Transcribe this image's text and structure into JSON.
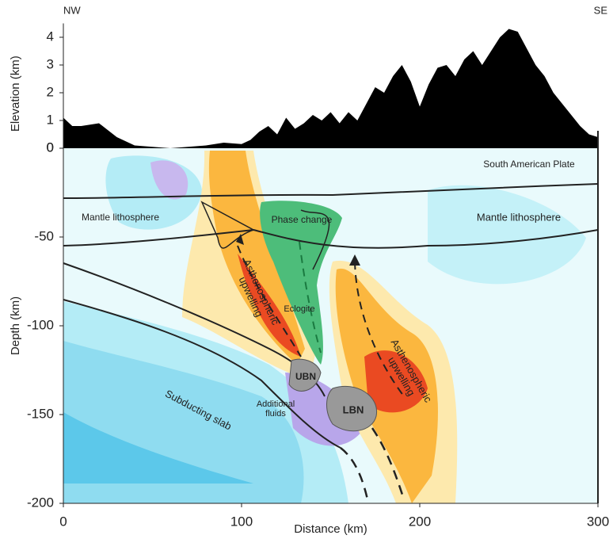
{
  "chart_data": [
    {
      "type": "area",
      "color": "#000000",
      "left_label": "NW",
      "right_label": "SE",
      "y_label": "Elevation (km)",
      "x": [
        0,
        5,
        10,
        20,
        30,
        40,
        50,
        60,
        70,
        80,
        90,
        100,
        105,
        110,
        115,
        120,
        125,
        130,
        135,
        140,
        145,
        150,
        155,
        160,
        165,
        170,
        175,
        180,
        185,
        190,
        195,
        200,
        205,
        210,
        215,
        220,
        225,
        230,
        235,
        240,
        245,
        250,
        255,
        260,
        265,
        270,
        275,
        280,
        285,
        290,
        295,
        300
      ],
      "values": [
        1.1,
        0.8,
        0.8,
        0.9,
        0.4,
        0.1,
        0.05,
        0.0,
        0.05,
        0.1,
        0.2,
        0.15,
        0.3,
        0.6,
        0.8,
        0.5,
        1.1,
        0.7,
        0.9,
        1.2,
        1.0,
        1.3,
        0.9,
        1.3,
        1.0,
        1.6,
        2.2,
        2.0,
        2.6,
        3.0,
        2.4,
        1.5,
        2.3,
        2.9,
        3.0,
        2.6,
        3.2,
        3.5,
        3.0,
        3.5,
        4.0,
        4.3,
        4.2,
        3.6,
        3.0,
        2.6,
        2.0,
        1.6,
        1.2,
        0.8,
        0.5,
        0.4
      ],
      "xlim": [
        0,
        300
      ],
      "ylim": [
        0,
        4.5
      ],
      "yticks": [
        0,
        1,
        2,
        3,
        4
      ]
    },
    {
      "type": "cross-section",
      "x_label": "Distance (km)",
      "y_label": "Depth (km)",
      "xlim": [
        0,
        300
      ],
      "ylim": [
        -200,
        0
      ],
      "xticks": [
        0,
        100,
        200,
        300
      ],
      "yticks": [
        0,
        -50,
        -100,
        -150,
        -200
      ],
      "annotations": [
        {
          "text": "South American Plate"
        },
        {
          "text": "Mantle lithosphere"
        },
        {
          "text": "Mantle lithosphere"
        },
        {
          "text": "Phase change"
        },
        {
          "text": "Eclogite"
        },
        {
          "text": [
            "Asthenospheric",
            "upwelling"
          ]
        },
        {
          "text": [
            "Asthenospheric",
            "upwelling"
          ]
        },
        {
          "text": "Subducting slab"
        },
        {
          "text": [
            "Additional",
            "fluids"
          ]
        },
        {
          "text": "UBN"
        },
        {
          "text": "LBN"
        }
      ]
    }
  ]
}
